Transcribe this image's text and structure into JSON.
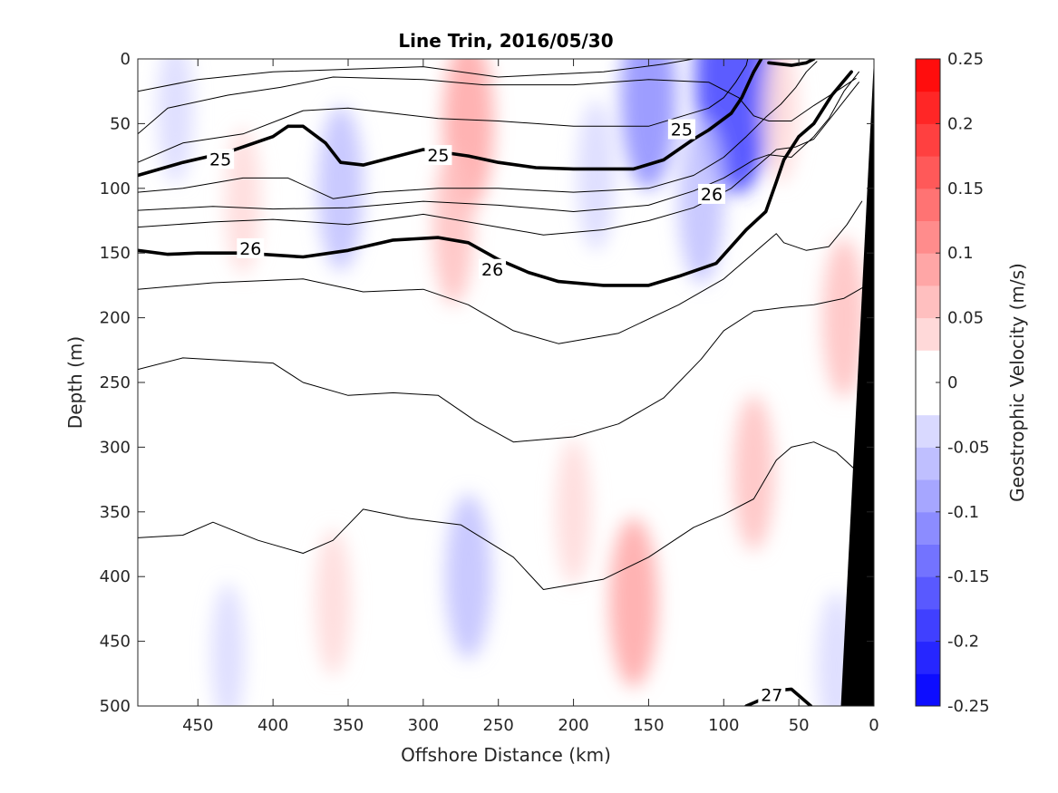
{
  "chart_data": {
    "type": "heatmap",
    "title": "Line Trin, 2016/05/30",
    "xlabel": "Offshore Distance (km)",
    "ylabel": "Depth (m)",
    "xlim": [
      490,
      0
    ],
    "ylim": [
      500,
      0
    ],
    "x_reversed": true,
    "y_reversed": true,
    "grid": false,
    "xticks": [
      450,
      400,
      350,
      300,
      250,
      200,
      150,
      100,
      50,
      0
    ],
    "yticks": [
      0,
      50,
      100,
      150,
      200,
      250,
      300,
      350,
      400,
      450,
      500
    ],
    "colorbar": {
      "label": "Geostrophic Velocity (m/s)",
      "placement": "right",
      "range": [
        -0.25,
        0.25
      ],
      "levels": 20,
      "ticks": [
        0.25,
        0.2,
        0.15,
        0.1,
        0.05,
        0,
        -0.05,
        -0.1,
        -0.15,
        -0.2,
        -0.25
      ],
      "colormap": "blue-white-red",
      "low_color": "#0000ff",
      "high_color": "#ff0000",
      "mid_color": "#ffffff"
    },
    "topography": {
      "color": "#000000",
      "boundary_x": [
        22,
        8,
        0,
        0
      ]
    },
    "velocity_features": [
      {
        "x": 92,
        "depth": 15,
        "velocity": -0.22
      },
      {
        "x": 150,
        "depth": 30,
        "velocity": -0.12
      },
      {
        "x": 115,
        "depth": 110,
        "velocity": -0.08
      },
      {
        "x": 185,
        "depth": 90,
        "velocity": -0.05
      },
      {
        "x": 270,
        "depth": 50,
        "velocity": 0.1
      },
      {
        "x": 280,
        "depth": 130,
        "velocity": 0.06
      },
      {
        "x": 355,
        "depth": 100,
        "velocity": -0.08
      },
      {
        "x": 420,
        "depth": 110,
        "velocity": 0.04
      },
      {
        "x": 465,
        "depth": 40,
        "velocity": -0.04
      },
      {
        "x": 62,
        "depth": 40,
        "velocity": 0.04
      },
      {
        "x": 20,
        "depth": 200,
        "velocity": 0.07
      },
      {
        "x": 270,
        "depth": 400,
        "velocity": -0.08
      },
      {
        "x": 160,
        "depth": 420,
        "velocity": 0.09
      },
      {
        "x": 80,
        "depth": 320,
        "velocity": 0.06
      },
      {
        "x": 200,
        "depth": 350,
        "velocity": 0.04
      },
      {
        "x": 360,
        "depth": 420,
        "velocity": 0.04
      },
      {
        "x": 430,
        "depth": 460,
        "velocity": -0.03
      },
      {
        "x": 25,
        "depth": 470,
        "velocity": -0.05
      }
    ],
    "isopycnals": [
      {
        "label": "",
        "bold": false,
        "points": [
          [
            490,
            25
          ],
          [
            450,
            16
          ],
          [
            400,
            10
          ],
          [
            350,
            8
          ],
          [
            300,
            6
          ],
          [
            250,
            14
          ],
          [
            180,
            10
          ],
          [
            140,
            4
          ],
          [
            120,
            0
          ]
        ]
      },
      {
        "label": "",
        "bold": false,
        "points": [
          [
            490,
            58
          ],
          [
            470,
            38
          ],
          [
            430,
            28
          ],
          [
            395,
            22
          ],
          [
            360,
            14
          ],
          [
            300,
            16
          ],
          [
            260,
            20
          ],
          [
            200,
            20
          ],
          [
            150,
            16
          ],
          [
            110,
            18
          ],
          [
            90,
            30
          ],
          [
            80,
            44
          ],
          [
            70,
            48
          ],
          [
            55,
            48
          ],
          [
            40,
            36
          ],
          [
            25,
            25
          ],
          [
            12,
            15
          ]
        ]
      },
      {
        "label": "",
        "bold": false,
        "points": [
          [
            490,
            80
          ],
          [
            460,
            65
          ],
          [
            420,
            58
          ],
          [
            380,
            40
          ],
          [
            350,
            38
          ],
          [
            320,
            42
          ],
          [
            290,
            46
          ],
          [
            250,
            48
          ],
          [
            200,
            52
          ],
          [
            150,
            52
          ],
          [
            110,
            38
          ],
          [
            100,
            30
          ],
          [
            92,
            18
          ],
          [
            85,
            5
          ],
          [
            84,
            0
          ]
        ]
      },
      {
        "label": "25",
        "bold": true,
        "label_positions": [
          [
            435,
            78
          ],
          [
            290,
            75
          ],
          [
            128,
            55
          ]
        ],
        "points": [
          [
            490,
            90
          ],
          [
            460,
            80
          ],
          [
            430,
            72
          ],
          [
            400,
            60
          ],
          [
            390,
            52
          ],
          [
            380,
            52
          ],
          [
            365,
            65
          ],
          [
            355,
            80
          ],
          [
            340,
            82
          ],
          [
            320,
            76
          ],
          [
            300,
            70
          ],
          [
            270,
            75
          ],
          [
            250,
            80
          ],
          [
            225,
            84
          ],
          [
            200,
            85
          ],
          [
            160,
            85
          ],
          [
            140,
            78
          ],
          [
            120,
            62
          ],
          [
            110,
            55
          ],
          [
            95,
            42
          ],
          [
            88,
            30
          ],
          [
            80,
            10
          ],
          [
            75,
            0
          ]
        ]
      },
      {
        "label": "",
        "bold": false,
        "points": [
          [
            490,
            103
          ],
          [
            460,
            100
          ],
          [
            420,
            92
          ],
          [
            390,
            92
          ],
          [
            360,
            108
          ],
          [
            330,
            103
          ],
          [
            290,
            100
          ],
          [
            250,
            100
          ],
          [
            200,
            103
          ],
          [
            150,
            100
          ],
          [
            120,
            90
          ],
          [
            100,
            76
          ],
          [
            85,
            60
          ],
          [
            72,
            45
          ],
          [
            62,
            35
          ],
          [
            52,
            22
          ],
          [
            45,
            10
          ],
          [
            38,
            2
          ]
        ]
      },
      {
        "label": "",
        "bold": false,
        "points": [
          [
            490,
            117
          ],
          [
            440,
            114
          ],
          [
            400,
            116
          ],
          [
            350,
            115
          ],
          [
            300,
            110
          ],
          [
            250,
            113
          ],
          [
            200,
            118
          ],
          [
            150,
            113
          ],
          [
            120,
            102
          ],
          [
            100,
            92
          ],
          [
            80,
            78
          ],
          [
            70,
            74
          ],
          [
            55,
            76
          ],
          [
            40,
            60
          ],
          [
            30,
            46
          ],
          [
            20,
            25
          ],
          [
            10,
            10
          ]
        ]
      },
      {
        "label": "",
        "bold": false,
        "points": [
          [
            490,
            130
          ],
          [
            440,
            126
          ],
          [
            400,
            124
          ],
          [
            350,
            128
          ],
          [
            300,
            120
          ],
          [
            250,
            130
          ],
          [
            220,
            136
          ],
          [
            180,
            132
          ],
          [
            150,
            125
          ],
          [
            120,
            115
          ],
          [
            95,
            100
          ],
          [
            80,
            85
          ],
          [
            65,
            70
          ],
          [
            52,
            68
          ],
          [
            40,
            62
          ],
          [
            25,
            40
          ],
          [
            10,
            18
          ]
        ]
      },
      {
        "label": "26",
        "bold": true,
        "label_positions": [
          [
            415,
            147
          ],
          [
            254,
            163
          ],
          [
            108,
            105
          ]
        ],
        "points": [
          [
            490,
            148
          ],
          [
            470,
            151
          ],
          [
            450,
            150
          ],
          [
            420,
            150
          ],
          [
            380,
            153
          ],
          [
            350,
            148
          ],
          [
            320,
            140
          ],
          [
            290,
            138
          ],
          [
            270,
            142
          ],
          [
            250,
            155
          ],
          [
            230,
            165
          ],
          [
            210,
            172
          ],
          [
            180,
            175
          ],
          [
            150,
            175
          ],
          [
            130,
            168
          ],
          [
            105,
            158
          ],
          [
            85,
            132
          ],
          [
            72,
            118
          ],
          [
            65,
            95
          ],
          [
            60,
            78
          ],
          [
            50,
            60
          ],
          [
            40,
            50
          ],
          [
            28,
            28
          ],
          [
            15,
            10
          ]
        ]
      },
      {
        "label": "",
        "bold": false,
        "points": [
          [
            490,
            178
          ],
          [
            440,
            173
          ],
          [
            380,
            170
          ],
          [
            340,
            180
          ],
          [
            300,
            178
          ],
          [
            270,
            190
          ],
          [
            240,
            210
          ],
          [
            210,
            220
          ],
          [
            170,
            212
          ],
          [
            130,
            190
          ],
          [
            100,
            170
          ],
          [
            80,
            150
          ],
          [
            65,
            135
          ],
          [
            60,
            142
          ],
          [
            45,
            148
          ],
          [
            30,
            145
          ],
          [
            18,
            128
          ],
          [
            8,
            110
          ]
        ]
      },
      {
        "label": "",
        "bold": false,
        "points": [
          [
            490,
            240
          ],
          [
            460,
            231
          ],
          [
            400,
            235
          ],
          [
            380,
            250
          ],
          [
            350,
            260
          ],
          [
            320,
            258
          ],
          [
            290,
            260
          ],
          [
            265,
            280
          ],
          [
            240,
            296
          ],
          [
            200,
            292
          ],
          [
            170,
            282
          ],
          [
            140,
            262
          ],
          [
            115,
            232
          ],
          [
            100,
            210
          ],
          [
            80,
            195
          ],
          [
            60,
            192
          ],
          [
            40,
            190
          ],
          [
            20,
            185
          ],
          [
            5,
            175
          ]
        ]
      },
      {
        "label": "",
        "bold": false,
        "points": [
          [
            490,
            370
          ],
          [
            460,
            368
          ],
          [
            440,
            358
          ],
          [
            410,
            372
          ],
          [
            380,
            382
          ],
          [
            360,
            372
          ],
          [
            340,
            348
          ],
          [
            310,
            355
          ],
          [
            275,
            360
          ],
          [
            240,
            385
          ],
          [
            220,
            410
          ],
          [
            180,
            402
          ],
          [
            150,
            385
          ],
          [
            120,
            362
          ],
          [
            100,
            352
          ],
          [
            80,
            340
          ],
          [
            65,
            310
          ],
          [
            55,
            300
          ],
          [
            40,
            296
          ],
          [
            25,
            304
          ],
          [
            10,
            320
          ]
        ]
      },
      {
        "label": "27",
        "bold": true,
        "label_positions": [
          [
            68,
            492
          ]
        ],
        "points": [
          [
            85,
            500
          ],
          [
            75,
            495
          ],
          [
            65,
            488
          ],
          [
            55,
            487
          ],
          [
            48,
            494
          ],
          [
            42,
            500
          ]
        ]
      },
      {
        "label": "",
        "bold": true,
        "points": [
          [
            70,
            3
          ],
          [
            55,
            5
          ],
          [
            45,
            3
          ],
          [
            40,
            0
          ]
        ]
      }
    ]
  }
}
